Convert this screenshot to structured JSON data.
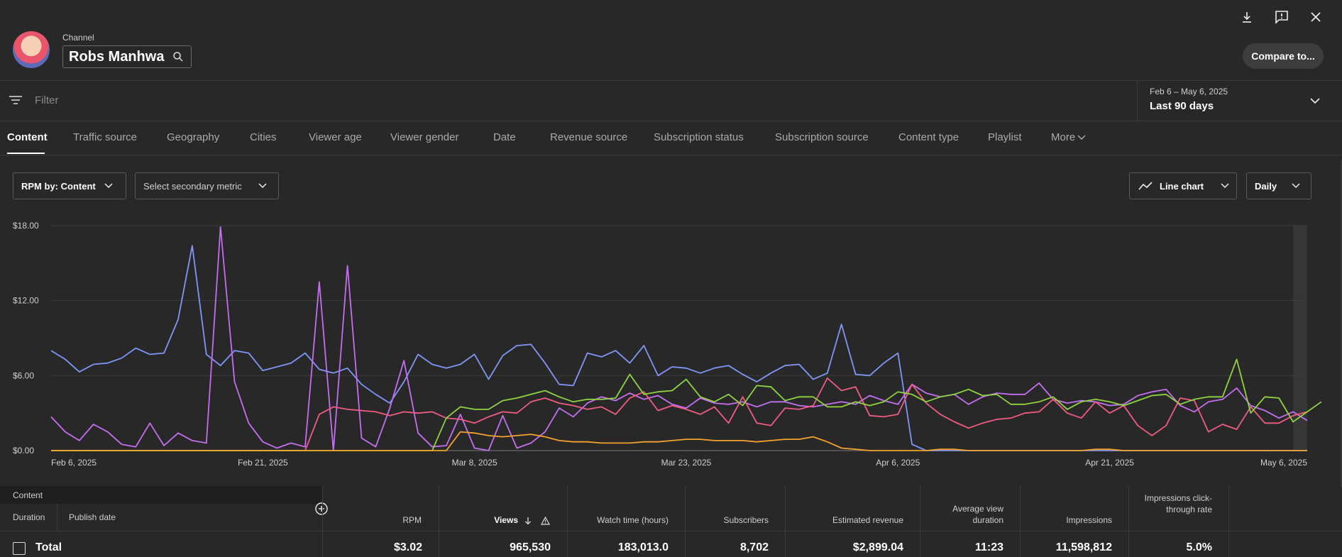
{
  "header": {
    "channel_label": "Channel",
    "channel_name": "Robs Manhwa",
    "compare_label": "Compare to..."
  },
  "filter": {
    "placeholder": "Filter",
    "date_range": "Feb 6 – May 6, 2025",
    "date_label": "Last 90 days"
  },
  "tabs": [
    "Content",
    "Traffic source",
    "Geography",
    "Cities",
    "Viewer age",
    "Viewer gender",
    "Date",
    "Revenue source",
    "Subscription status",
    "Subscription source",
    "Content type",
    "Playlist",
    "More"
  ],
  "controls": {
    "metric": "RPM by: Content",
    "secondary": "Select secondary metric",
    "chart_type": "Line chart",
    "interval": "Daily"
  },
  "colors": {
    "blue": "#8097f7",
    "purple": "#c56ff0",
    "pink": "#ee5c82",
    "green": "#8fd341",
    "orange": "#f2a22c"
  },
  "chart_data": {
    "type": "line",
    "y_ticks": [
      "$18.00",
      "$12.00",
      "$6.00",
      "$0.00"
    ],
    "ylim": [
      0,
      18
    ],
    "x_ticks": [
      "Feb 6, 2025",
      "Feb 21, 2025",
      "Mar 8, 2025",
      "Mar 23, 2025",
      "Apr 6, 2025",
      "Apr 21, 2025",
      "May 6, 2025"
    ],
    "days": 90,
    "series": [
      {
        "color": "blue",
        "values": [
          8,
          7.3,
          6.3,
          6.9,
          7,
          7.4,
          8.2,
          7.7,
          7.8,
          10.5,
          16.4,
          7.7,
          6.8,
          8,
          7.8,
          6.4,
          6.7,
          7,
          7.8,
          6.5,
          6.2,
          6.6,
          5.3,
          4.5,
          3.8,
          5.5,
          7.7,
          6.9,
          6.6,
          6.9,
          7.7,
          5.7,
          7.6,
          8.4,
          8.5,
          7,
          5.3,
          5.2,
          7.8,
          7.5,
          8,
          7,
          8.4,
          6,
          6.7,
          6.6,
          6.2,
          6.6,
          6.8,
          6.1,
          5.5,
          6.2,
          6.8,
          6.9,
          5.7,
          6.2,
          10.1,
          6.1,
          6,
          7,
          7.8,
          0.5,
          0,
          0,
          0,
          0,
          0,
          0,
          0,
          0,
          0,
          0,
          0,
          0,
          0,
          0,
          0,
          0,
          0,
          0,
          0,
          0,
          0,
          0,
          0,
          0,
          0,
          0,
          0,
          0
        ]
      },
      {
        "color": "purple",
        "values": [
          2.7,
          1.5,
          0.8,
          2.1,
          1.5,
          0.5,
          0.3,
          2.2,
          0.4,
          1.4,
          0.8,
          0.6,
          17.9,
          5.5,
          2.2,
          0.7,
          0.2,
          0.6,
          0.3,
          13.5,
          0,
          14.8,
          1,
          0.3,
          3.4,
          7.2,
          1.4,
          0.3,
          0.4,
          2.9,
          0.2,
          0,
          2.8,
          0.2,
          0.6,
          1.5,
          3.4,
          2.7,
          3.8,
          4.3,
          4,
          4.6,
          4.1,
          4.4,
          3.7,
          3.4,
          4.2,
          3.8,
          3.7,
          3.9,
          3.5,
          3.9,
          3.9,
          3.6,
          3.5,
          3.7,
          3.9,
          3.7,
          4.4,
          4,
          3.7,
          5.3,
          4.6,
          4.3,
          4.5,
          3.7,
          4.3,
          4.6,
          4.5,
          4.5,
          5.4,
          4.1,
          3.8,
          4,
          3.9,
          3.6,
          3.7,
          4.4,
          4.7,
          4.9,
          3.6,
          3.1,
          3.9,
          4.1,
          5,
          3.6,
          3.2,
          2.6,
          3.1,
          2.4
        ]
      },
      {
        "color": "pink",
        "values": [
          0,
          0,
          0,
          0,
          0,
          0,
          0,
          0,
          0,
          0,
          0,
          0,
          0,
          0,
          0,
          0,
          0,
          0,
          0,
          2.9,
          3.5,
          3.3,
          3.2,
          3.1,
          2.8,
          3.1,
          3,
          3.1,
          2.6,
          2.5,
          2.2,
          2.7,
          3.1,
          3,
          3.9,
          4.2,
          3.8,
          3.6,
          3.3,
          3.5,
          2.9,
          4.2,
          4.7,
          3.2,
          3.6,
          3.3,
          2.9,
          3.5,
          2.2,
          4.3,
          2.2,
          2,
          3.4,
          3.3,
          3.6,
          5.8,
          4.8,
          5.1,
          2.8,
          2.7,
          2.9,
          5.3,
          3.8,
          2.9,
          2.3,
          1.8,
          2.2,
          2.5,
          2.6,
          3,
          3.1,
          4.1,
          3,
          2.6,
          3.9,
          3,
          3.6,
          2,
          1.2,
          2,
          4.2,
          4,
          1.5,
          2.1,
          1.7,
          3.5,
          2.2,
          2.2,
          2.8,
          3.1
        ]
      },
      {
        "color": "green",
        "values": [
          0,
          0,
          0,
          0,
          0,
          0,
          0,
          0,
          0,
          0,
          0,
          0,
          0,
          0,
          0,
          0,
          0,
          0,
          0,
          0,
          0,
          0,
          0,
          0,
          0,
          0,
          0,
          0,
          2.6,
          3.5,
          3.3,
          3.3,
          4,
          4.2,
          4.5,
          4.8,
          4.3,
          3.9,
          4.1,
          4.1,
          4.2,
          6.1,
          4.5,
          4.7,
          4.8,
          5.7,
          4.3,
          3.9,
          4.5,
          3.6,
          5.2,
          5.1,
          4,
          4.3,
          4.3,
          3.5,
          3.5,
          3.9,
          3.6,
          3.9,
          4.7,
          4.5,
          3.9,
          4.3,
          4.5,
          4.9,
          4.4,
          4.5,
          3.7,
          3.7,
          3.9,
          4.3,
          3.3,
          3.9,
          4.1,
          3.9,
          3.6,
          4,
          4.4,
          4.5,
          3.7,
          4.1,
          4.3,
          4.3,
          7.3,
          3,
          4.3,
          4.2,
          2.3,
          3.1,
          3.9
        ]
      },
      {
        "color": "orange",
        "values": [
          0,
          0,
          0,
          0,
          0,
          0,
          0,
          0,
          0,
          0,
          0,
          0,
          0,
          0,
          0,
          0,
          0,
          0,
          0,
          0,
          0,
          0,
          0,
          0,
          0,
          0,
          0,
          0,
          0,
          1.5,
          1.4,
          1.2,
          1.1,
          1.2,
          1.3,
          1.1,
          0.8,
          0.7,
          0.7,
          0.6,
          0.6,
          0.6,
          0.7,
          0.7,
          0.8,
          0.9,
          0.9,
          0.8,
          0.8,
          0.8,
          0.7,
          0.8,
          0.9,
          0.9,
          1.1,
          0.7,
          0.2,
          0.1,
          0,
          0,
          0,
          0,
          0,
          0.1,
          0.1,
          0,
          0,
          0,
          0,
          0,
          0,
          0,
          0,
          0,
          0.1,
          0.1,
          0,
          0,
          0,
          0,
          0,
          0,
          0,
          0,
          0,
          0,
          0,
          0,
          0,
          0
        ]
      }
    ]
  },
  "table": {
    "content_label": "Content",
    "duration_label": "Duration",
    "publish_label": "Publish date",
    "columns": [
      {
        "key": "rpm",
        "label": "RPM"
      },
      {
        "key": "views",
        "label": "Views"
      },
      {
        "key": "watch",
        "label": "Watch time (hours)"
      },
      {
        "key": "subs",
        "label": "Subscribers"
      },
      {
        "key": "rev",
        "label": "Estimated revenue"
      },
      {
        "key": "avd",
        "label": "Average view duration"
      },
      {
        "key": "imp",
        "label": "Impressions"
      },
      {
        "key": "ctr",
        "label": "Impressions click-through rate"
      }
    ],
    "total_label": "Total",
    "total": {
      "rpm": "$3.02",
      "views": "965,530",
      "watch": "183,013.0",
      "subs": "8,702",
      "rev": "$2,899.04",
      "avd": "11:23",
      "imp": "11,598,812",
      "ctr": "5.0%"
    }
  }
}
